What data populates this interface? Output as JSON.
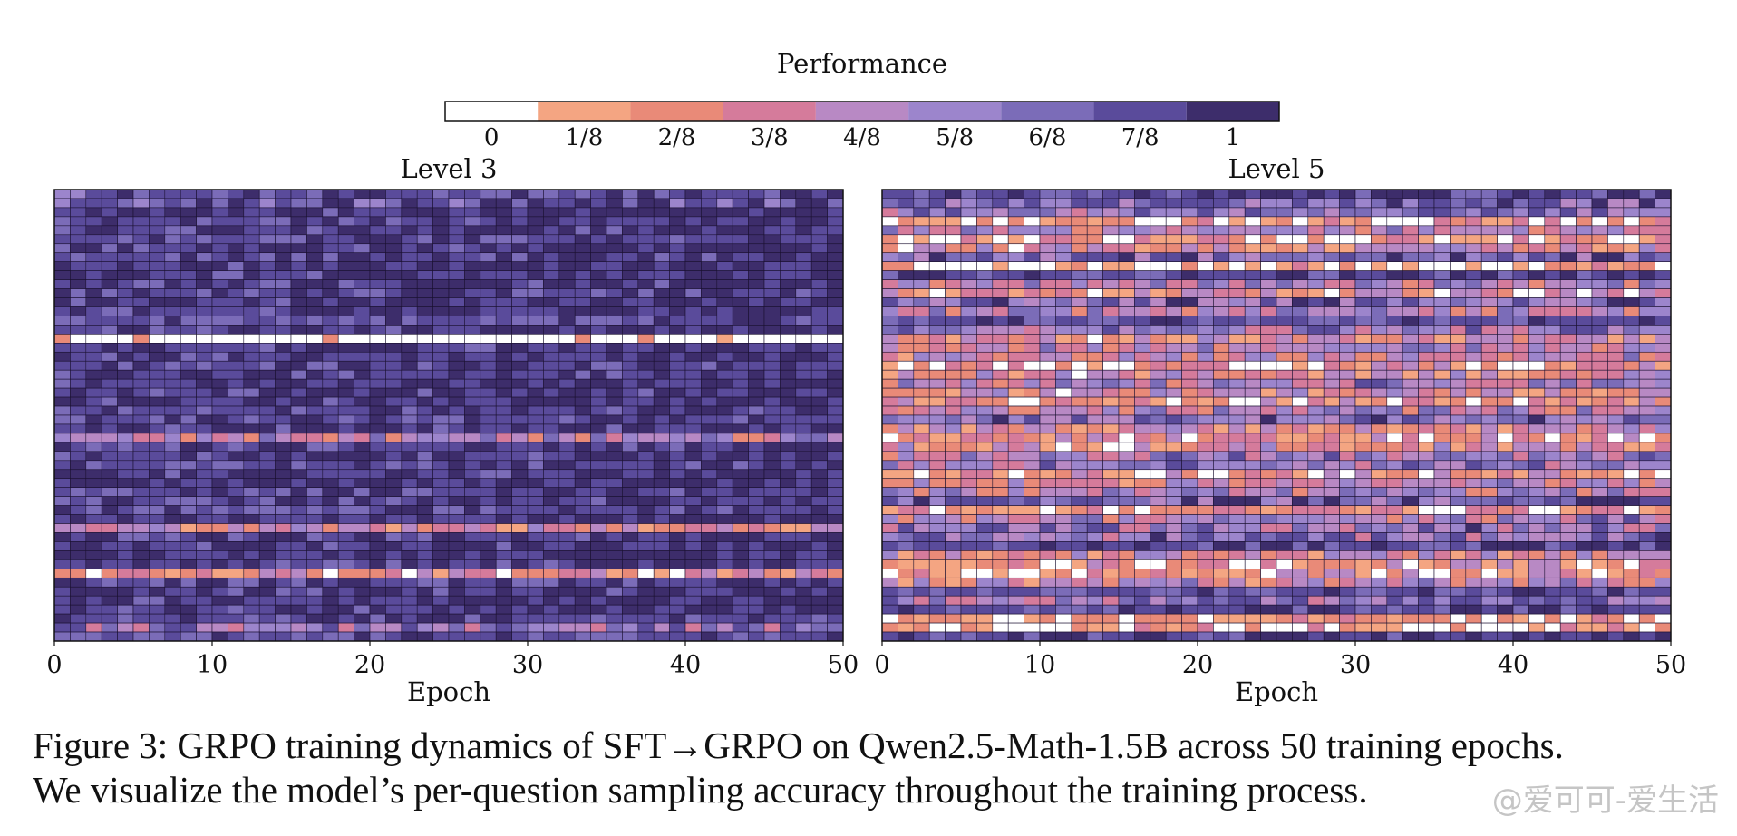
{
  "figure": {
    "caption": {
      "line1": "Figure 3: GRPO training dynamics of SFT→GRPO on Qwen2.5-Math-1.5B across 50 training epochs.",
      "line2": "We visualize the model’s per-question sampling accuracy throughout the training process."
    },
    "watermark": "@爱可可-爱生活"
  },
  "chart_data": [
    {
      "type": "heatmap",
      "title": "Level 3",
      "xlabel": "Epoch",
      "ylabel": "",
      "x_ticks": [
        0,
        10,
        20,
        30,
        40,
        50
      ],
      "xlim": [
        0,
        50
      ],
      "y_ticks": [],
      "n_columns": 50,
      "n_rows": 50,
      "summary": {
        "typical_value": "7/8 to 1",
        "row_profile": [
          0.82,
          0.78,
          0.93,
          0.9,
          0.88,
          0.86,
          0.9,
          0.88,
          0.93,
          0.9,
          0.88,
          0.86,
          0.9,
          0.88,
          0.82,
          0.9,
          0.0,
          0.9,
          0.93,
          0.88,
          0.9,
          0.93,
          0.9,
          0.93,
          0.86,
          0.88,
          0.9,
          0.44,
          0.88,
          0.9,
          0.86,
          0.9,
          0.93,
          0.88,
          0.9,
          0.86,
          0.9,
          0.33,
          0.88,
          0.9,
          0.93,
          0.9,
          0.22,
          0.88,
          0.9,
          0.93,
          0.9,
          0.86,
          0.62,
          0.84
        ]
      }
    },
    {
      "type": "heatmap",
      "title": "Level 5",
      "xlabel": "Epoch",
      "ylabel": "",
      "x_ticks": [
        0,
        10,
        20,
        30,
        40,
        50
      ],
      "xlim": [
        0,
        50
      ],
      "y_ticks": [],
      "n_columns": 50,
      "n_rows": 50,
      "summary": {
        "typical_value": "mixed 0 to 1",
        "row_profile": [
          0.86,
          0.7,
          0.62,
          0.12,
          0.45,
          0.08,
          0.3,
          0.75,
          0.02,
          0.85,
          0.5,
          0.22,
          0.7,
          0.45,
          0.82,
          0.6,
          0.28,
          0.5,
          0.4,
          0.15,
          0.3,
          0.55,
          0.32,
          0.2,
          0.45,
          0.72,
          0.3,
          0.18,
          0.3,
          0.55,
          0.6,
          0.2,
          0.42,
          0.48,
          0.78,
          0.12,
          0.5,
          0.62,
          0.65,
          0.86,
          0.38,
          0.18,
          0.22,
          0.4,
          0.82,
          0.62,
          0.85,
          0.06,
          0.1,
          0.9
        ]
      }
    }
  ],
  "colorbar": {
    "title": "Performance",
    "tick_labels": [
      "0",
      "1/8",
      "2/8",
      "3/8",
      "4/8",
      "5/8",
      "6/8",
      "7/8",
      "1"
    ],
    "colors": [
      "#ffffff",
      "#f4a582",
      "#e98a78",
      "#d57b9b",
      "#b889c4",
      "#9c85cc",
      "#7b6cb8",
      "#5a4b9b",
      "#3d2d6b"
    ]
  }
}
